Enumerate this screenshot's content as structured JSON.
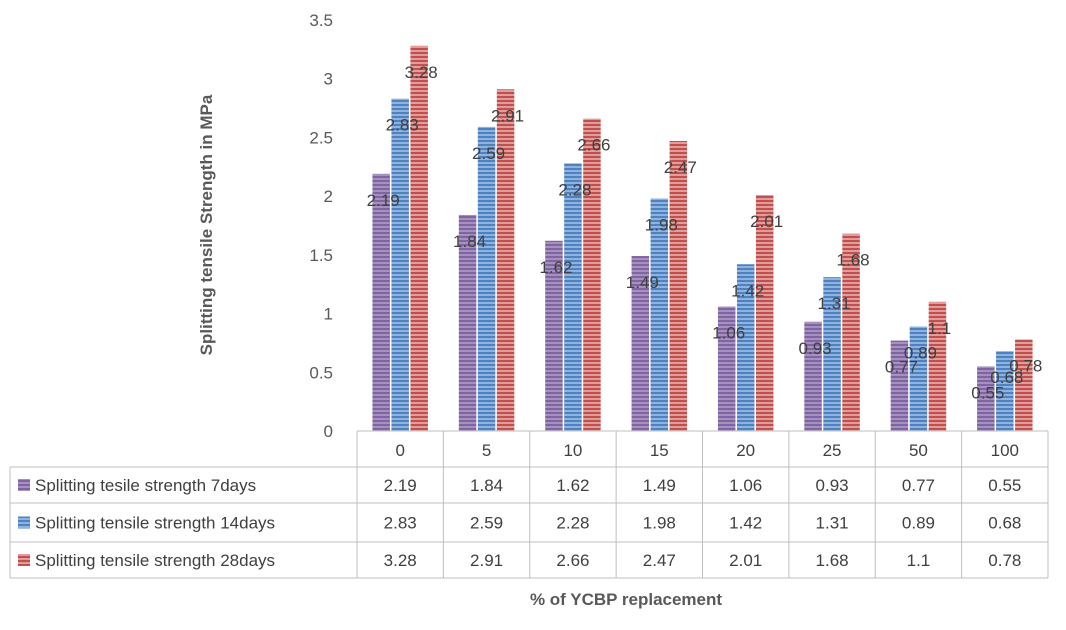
{
  "chart_data": {
    "type": "bar",
    "categories": [
      "0",
      "5",
      "10",
      "15",
      "20",
      "25",
      "50",
      "100"
    ],
    "series": [
      {
        "name": "Splitting tesile strength 7days",
        "values": [
          2.19,
          1.84,
          1.62,
          1.49,
          1.06,
          0.93,
          0.77,
          0.55
        ],
        "labels": [
          "2.19",
          "1.84",
          "1.62",
          "1.49",
          "1.06",
          "0.93",
          "0.77",
          "0.55"
        ],
        "color": "#8064a2"
      },
      {
        "name": "Splitting tensile strength 14days",
        "values": [
          2.83,
          2.59,
          2.28,
          1.98,
          1.42,
          1.31,
          0.89,
          0.68
        ],
        "labels": [
          "2.83",
          "2.59",
          "2.28",
          "1.98",
          "1.42",
          "1.31",
          "0.89",
          "0.68"
        ],
        "color": "#4f81bd"
      },
      {
        "name": "Splitting tensile strength 28days",
        "values": [
          3.28,
          2.91,
          2.66,
          2.47,
          2.01,
          1.68,
          1.1,
          0.78
        ],
        "labels": [
          "3.28",
          "2.91",
          "2.66",
          "2.47",
          "2.01",
          "1.68",
          "1.1",
          "0.78"
        ],
        "color": "#c0504d"
      }
    ],
    "xlabel": "% of YCBP replacement",
    "ylabel": "Splitting tensile Strength in MPa",
    "ylim": [
      0,
      3.5
    ],
    "yticks": [
      "0",
      "0.5",
      "1",
      "1.5",
      "2",
      "2.5",
      "3",
      "3.5"
    ],
    "grid": false,
    "legend": "data-table-below"
  }
}
